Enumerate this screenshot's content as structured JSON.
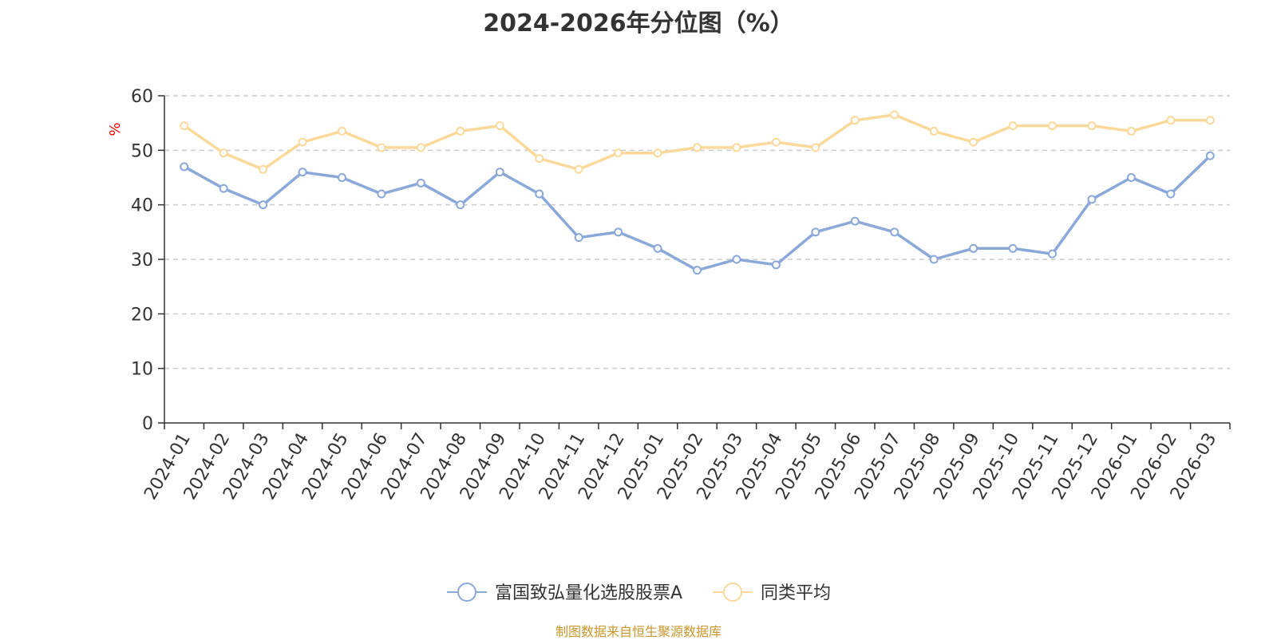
{
  "chart_data": {
    "type": "line",
    "title": "2024-2026年分位图（%）",
    "ylabel": "%",
    "xlabel": "",
    "ylim": [
      0,
      60
    ],
    "yticks": [
      0,
      10,
      20,
      30,
      40,
      50,
      60
    ],
    "grid": true,
    "legend_position": "bottom-center",
    "categories": [
      "2024-01",
      "2024-02",
      "2024-03",
      "2024-04",
      "2024-05",
      "2024-06",
      "2024-07",
      "2024-08",
      "2024-09",
      "2024-10",
      "2024-11",
      "2024-12",
      "2025-01",
      "2025-02",
      "2025-03",
      "2025-04",
      "2025-05",
      "2025-06",
      "2025-07",
      "2025-08",
      "2025-09",
      "2025-10",
      "2025-11",
      "2025-12",
      "2026-01",
      "2026-02",
      "2026-03"
    ],
    "series": [
      {
        "name": "富国致弘量化选股股票A",
        "color": "#8aa8d8",
        "values": [
          47,
          43,
          40,
          46,
          45,
          42,
          44,
          40,
          46,
          42,
          34,
          35,
          32,
          28,
          30,
          29,
          35,
          37,
          35,
          30,
          32,
          32,
          31,
          41,
          45,
          42,
          49
        ]
      },
      {
        "name": "同类平均",
        "color": "#fbd99a",
        "values": [
          54.5,
          49.5,
          46.5,
          51.5,
          53.5,
          50.5,
          50.5,
          53.5,
          54.5,
          48.5,
          46.5,
          49.5,
          49.5,
          50.5,
          50.5,
          51.5,
          50.5,
          55.5,
          56.5,
          53.5,
          51.5,
          54.5,
          54.5,
          54.5,
          53.5,
          55.5,
          55.5
        ]
      }
    ],
    "ylabel_color": "#ff0000"
  },
  "source_text": "制图数据来自恒生聚源数据库"
}
